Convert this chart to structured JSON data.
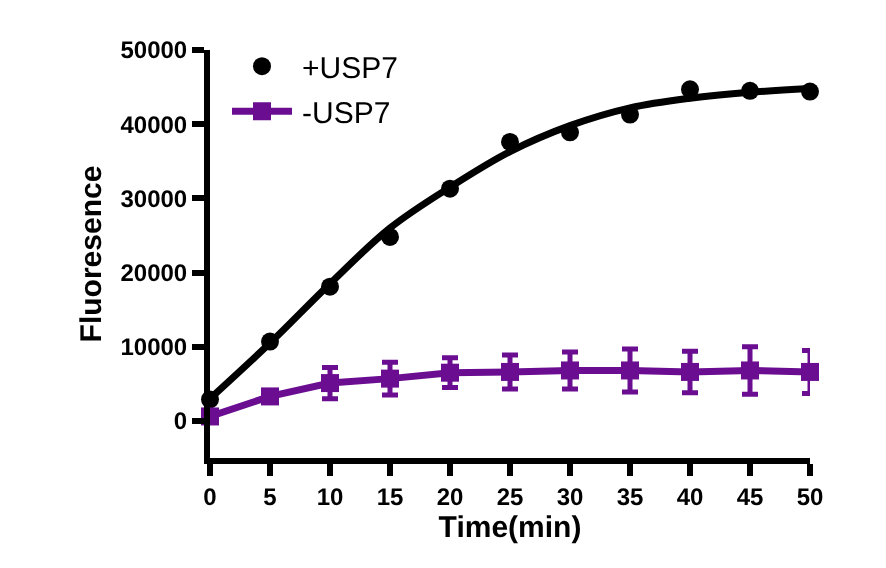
{
  "chart_data": {
    "type": "scatter",
    "xlabel": "Time(min)",
    "ylabel": "Fluoresence",
    "x": [
      0,
      5,
      10,
      15,
      20,
      25,
      30,
      35,
      40,
      45,
      50
    ],
    "xlim": [
      0,
      50
    ],
    "xticks": [
      0,
      5,
      10,
      15,
      20,
      25,
      30,
      35,
      40,
      45,
      50
    ],
    "ylim": [
      -5000,
      50000
    ],
    "yticks": [
      0,
      10000,
      20000,
      30000,
      40000,
      50000
    ],
    "legend": "top left",
    "series": [
      {
        "name": "+USP7",
        "marker": "circle",
        "color": "#000000",
        "values": [
          2900,
          10700,
          18100,
          24800,
          31300,
          37600,
          38900,
          41300,
          44700,
          44500,
          44400
        ]
      },
      {
        "type": "line",
        "marker": "none",
        "color": "#000000",
        "values": [
          3000,
          10500,
          18500,
          26000,
          31500,
          36300,
          39800,
          42200,
          43500,
          44300,
          44800
        ]
      },
      {
        "name": "-USP7",
        "type": "line",
        "marker": "square",
        "color": "#6a0d91",
        "values": [
          600,
          3300,
          5100,
          5700,
          6500,
          6600,
          6800,
          6800,
          6600,
          6800,
          6600
        ],
        "errors": [
          null,
          null,
          2100,
          2200,
          2000,
          2300,
          2500,
          2900,
          2800,
          3200,
          2900
        ]
      }
    ]
  }
}
